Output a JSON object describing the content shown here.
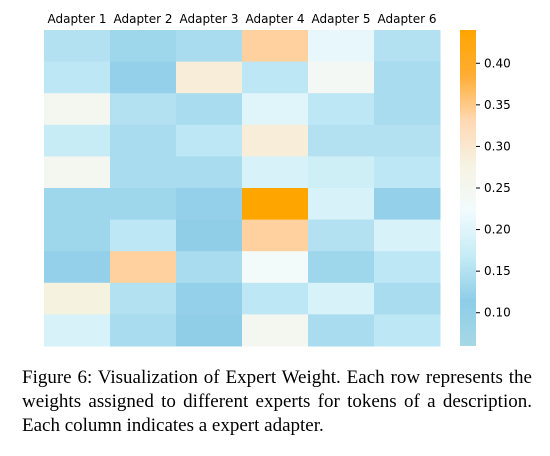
{
  "chart_data": {
    "type": "heatmap",
    "columns": [
      "Adapter 1",
      "Adapter 2",
      "Adapter 3",
      "Adapter 4",
      "Adapter 5",
      "Adapter 6"
    ],
    "rows": 10,
    "values": [
      [
        0.15,
        0.13,
        0.14,
        0.34,
        0.21,
        0.15
      ],
      [
        0.16,
        0.12,
        0.29,
        0.16,
        0.24,
        0.14
      ],
      [
        0.25,
        0.15,
        0.14,
        0.2,
        0.16,
        0.14
      ],
      [
        0.17,
        0.14,
        0.16,
        0.29,
        0.15,
        0.15
      ],
      [
        0.25,
        0.14,
        0.14,
        0.19,
        0.18,
        0.16
      ],
      [
        0.13,
        0.13,
        0.12,
        0.44,
        0.19,
        0.12
      ],
      [
        0.13,
        0.16,
        0.11,
        0.34,
        0.15,
        0.19
      ],
      [
        0.12,
        0.34,
        0.14,
        0.23,
        0.13,
        0.16
      ],
      [
        0.28,
        0.15,
        0.12,
        0.16,
        0.19,
        0.14
      ],
      [
        0.19,
        0.14,
        0.11,
        0.25,
        0.14,
        0.16
      ]
    ],
    "colorbar": {
      "min": 0.06,
      "max": 0.44,
      "ticks": [
        0.1,
        0.15,
        0.2,
        0.25,
        0.3,
        0.35,
        0.4
      ],
      "tick_labels": [
        "0.10",
        "0.15",
        "0.20",
        "0.25",
        "0.30",
        "0.35",
        "0.40"
      ],
      "colors": [
        "#a6d8e6",
        "#8ecde8",
        "#c6ecf6",
        "#f2fbfd",
        "#f6f3e3",
        "#ffd8b3",
        "#ffad33",
        "#ffa500"
      ]
    },
    "xlabel": "",
    "ylabel": ""
  },
  "caption": "Figure 6: Visualization of Expert Weight. Each row represents the weights assigned to different experts for tokens of a description. Each column indicates a expert adapter."
}
